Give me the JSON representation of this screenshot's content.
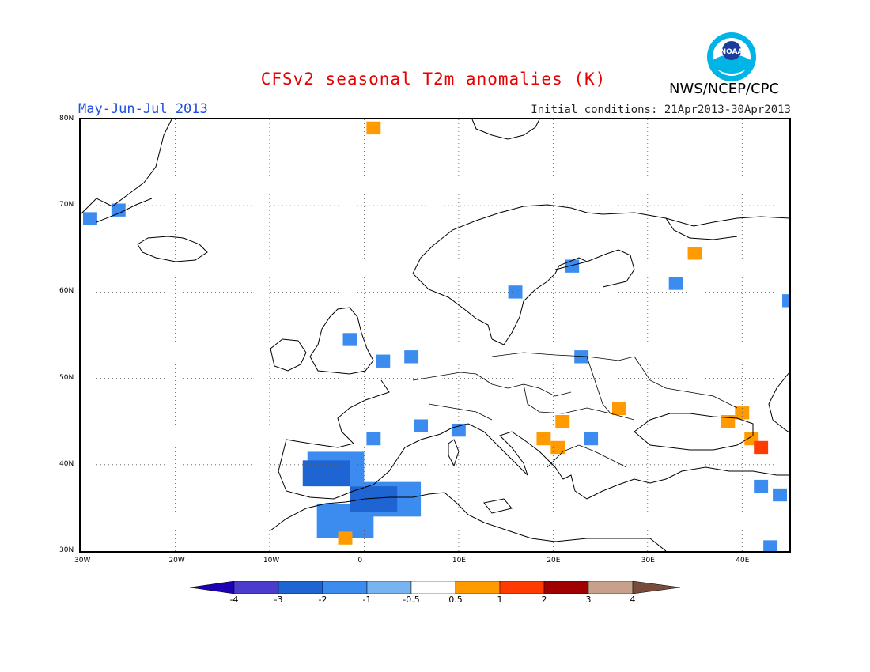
{
  "title": "CFSv2 seasonal T2m anomalies (K)",
  "period": "May-Jun-Jul 2013",
  "initial_conditions": "Initial conditions: 21Apr2013-30Apr2013",
  "agency": "NWS/NCEP/CPC",
  "logo": {
    "name": "noaa-logo",
    "text": "NOAA"
  },
  "map": {
    "projection": "lat-lon",
    "lon_range": [
      -30,
      45
    ],
    "lat_range": [
      30,
      80
    ],
    "gridlines": "dotted",
    "lon_ticks": [
      "30W",
      "20W",
      "10W",
      "0",
      "10E",
      "20E",
      "30E",
      "40E"
    ],
    "lat_ticks": [
      "30N",
      "40N",
      "50N",
      "60N",
      "70N",
      "80N"
    ]
  },
  "colorbar": {
    "tick_labels": [
      "-4",
      "-3",
      "-2",
      "-1",
      "-0.5",
      "0.5",
      "1",
      "2",
      "3",
      "4"
    ],
    "colors": [
      "#1e00b4",
      "#4b3ccd",
      "#1e64d2",
      "#3c8cf0",
      "#78b4f0",
      "#ffffff",
      "#ff9b00",
      "#ff3c00",
      "#a00000",
      "#c8a08c",
      "#784b3c"
    ]
  },
  "anomaly_cells": [
    {
      "lon": -29,
      "lat": 68.5,
      "level": "-1"
    },
    {
      "lon": -26,
      "lat": 69.5,
      "level": "-1"
    },
    {
      "lon": -1.5,
      "lat": 54.5,
      "level": "-1"
    },
    {
      "lon": 2,
      "lat": 52,
      "level": "-1"
    },
    {
      "lon": 5,
      "lat": 52.5,
      "level": "-1"
    },
    {
      "lon": 16,
      "lat": 60,
      "level": "-1"
    },
    {
      "lon": 22,
      "lat": 63,
      "level": "-1"
    },
    {
      "lon": 33,
      "lat": 61,
      "level": "-1"
    },
    {
      "lon": 45,
      "lat": 59,
      "level": "-1"
    },
    {
      "lon": 23,
      "lat": 52.5,
      "level": "-1"
    },
    {
      "lon": 1,
      "lat": 43,
      "level": "-1"
    },
    {
      "lon": 6,
      "lat": 44.5,
      "level": "-1"
    },
    {
      "lon": 10,
      "lat": 44,
      "level": "-1"
    },
    {
      "lon": 24,
      "lat": 43,
      "level": "-1"
    },
    {
      "lon": -3,
      "lat": 39.5,
      "level": "-1"
    },
    {
      "lon": 3,
      "lat": 36,
      "level": "-1"
    },
    {
      "lon": -2,
      "lat": 33.5,
      "level": "-1"
    },
    {
      "lon": 42,
      "lat": 37.5,
      "level": "-1"
    },
    {
      "lon": 44,
      "lat": 36.5,
      "level": "-1"
    },
    {
      "lon": 43,
      "lat": 30.5,
      "level": "-1"
    },
    {
      "lon": -4,
      "lat": 39,
      "level": "-2"
    },
    {
      "lon": 1,
      "lat": 36,
      "level": "-2"
    },
    {
      "lon": 1,
      "lat": 79,
      "level": "1"
    },
    {
      "lon": 35,
      "lat": 64.5,
      "level": "1"
    },
    {
      "lon": 27,
      "lat": 46.5,
      "level": "1"
    },
    {
      "lon": 21,
      "lat": 45,
      "level": "1"
    },
    {
      "lon": 19,
      "lat": 43,
      "level": "1"
    },
    {
      "lon": 20.5,
      "lat": 42,
      "level": "1"
    },
    {
      "lon": 40,
      "lat": 46,
      "level": "1"
    },
    {
      "lon": 38.5,
      "lat": 45,
      "level": "1"
    },
    {
      "lon": 41,
      "lat": 43,
      "level": "1"
    },
    {
      "lon": -2,
      "lat": 31.5,
      "level": "1"
    },
    {
      "lon": 42,
      "lat": 42,
      "level": "2"
    }
  ]
}
